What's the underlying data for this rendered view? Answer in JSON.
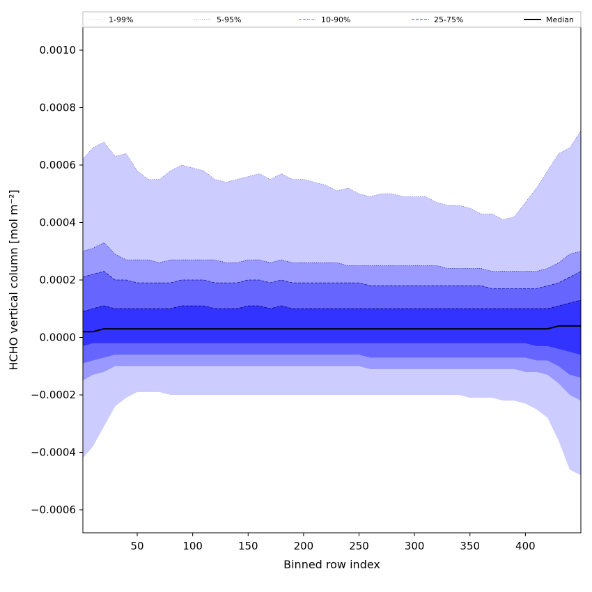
{
  "chart_data": {
    "type": "area",
    "title": "",
    "xlabel": "Binned row index",
    "ylabel": "HCHO vertical column [mol m⁻²]",
    "xlim": [
      1,
      450
    ],
    "ylim": [
      -0.00068,
      0.00108
    ],
    "x_ticks": [
      50,
      100,
      150,
      200,
      250,
      300,
      350,
      400
    ],
    "x_tick_labels": [
      "50",
      "100",
      "150",
      "200",
      "250",
      "300",
      "350",
      "400"
    ],
    "y_ticks": [
      -0.0006,
      -0.0004,
      -0.0002,
      0.0,
      0.0002,
      0.0004,
      0.0006,
      0.0008,
      0.001
    ],
    "y_tick_labels": [
      "−0.0006",
      "−0.0004",
      "−0.0002",
      "0.0000",
      "0.0002",
      "0.0004",
      "0.0006",
      "0.0008",
      "0.0010"
    ],
    "grid": false,
    "legend_position": "top, full width, single row",
    "x": [
      1,
      10,
      20,
      30,
      40,
      50,
      60,
      70,
      80,
      90,
      100,
      110,
      120,
      130,
      140,
      150,
      160,
      170,
      180,
      190,
      200,
      210,
      220,
      230,
      240,
      250,
      260,
      270,
      280,
      290,
      300,
      310,
      320,
      330,
      340,
      350,
      360,
      370,
      380,
      390,
      400,
      410,
      420,
      430,
      440,
      450
    ],
    "series": [
      {
        "name": "1-99%",
        "color": "#ccccff",
        "linestyle": "dotted",
        "upper": [
          0.00062,
          0.00066,
          0.00068,
          0.00063,
          0.00064,
          0.00058,
          0.00055,
          0.00055,
          0.00058,
          0.0006,
          0.00059,
          0.00058,
          0.00055,
          0.00054,
          0.00055,
          0.00056,
          0.00057,
          0.00055,
          0.00057,
          0.00055,
          0.00055,
          0.00054,
          0.00053,
          0.00051,
          0.00052,
          0.0005,
          0.00049,
          0.0005,
          0.0005,
          0.00049,
          0.00049,
          0.00049,
          0.00047,
          0.00046,
          0.00046,
          0.00045,
          0.00043,
          0.00043,
          0.00041,
          0.00042,
          0.00047,
          0.00052,
          0.00058,
          0.00064,
          0.00066,
          0.00072
        ],
        "lower": [
          -0.00042,
          -0.00038,
          -0.00031,
          -0.00024,
          -0.00021,
          -0.00019,
          -0.00019,
          -0.00019,
          -0.0002,
          -0.0002,
          -0.0002,
          -0.0002,
          -0.0002,
          -0.0002,
          -0.0002,
          -0.0002,
          -0.0002,
          -0.0002,
          -0.0002,
          -0.0002,
          -0.0002,
          -0.0002,
          -0.0002,
          -0.0002,
          -0.0002,
          -0.0002,
          -0.0002,
          -0.0002,
          -0.0002,
          -0.0002,
          -0.0002,
          -0.0002,
          -0.0002,
          -0.0002,
          -0.0002,
          -0.00021,
          -0.00021,
          -0.00021,
          -0.00022,
          -0.00022,
          -0.00023,
          -0.00025,
          -0.00028,
          -0.00036,
          -0.00046,
          -0.00048
        ]
      },
      {
        "name": "5-95%",
        "color": "#9999ff",
        "linestyle": "dotted",
        "upper": [
          0.0003,
          0.00031,
          0.00033,
          0.00029,
          0.00027,
          0.00027,
          0.00027,
          0.00026,
          0.00027,
          0.00027,
          0.00027,
          0.00027,
          0.00027,
          0.00026,
          0.00026,
          0.00027,
          0.00027,
          0.00026,
          0.00027,
          0.00026,
          0.00026,
          0.00026,
          0.00026,
          0.00026,
          0.00025,
          0.00025,
          0.00025,
          0.00025,
          0.00025,
          0.00025,
          0.00025,
          0.00025,
          0.00025,
          0.00024,
          0.00024,
          0.00024,
          0.00024,
          0.00023,
          0.00023,
          0.00023,
          0.00023,
          0.00023,
          0.00024,
          0.00026,
          0.00029,
          0.0003
        ],
        "lower": [
          -0.00015,
          -0.00013,
          -0.00012,
          -0.0001,
          -0.0001,
          -0.0001,
          -0.0001,
          -0.0001,
          -0.0001,
          -0.0001,
          -0.0001,
          -0.0001,
          -0.0001,
          -0.0001,
          -0.0001,
          -0.0001,
          -0.0001,
          -0.0001,
          -0.0001,
          -0.0001,
          -0.0001,
          -0.0001,
          -0.0001,
          -0.0001,
          -0.0001,
          -0.0001,
          -0.00011,
          -0.00011,
          -0.00011,
          -0.00011,
          -0.00011,
          -0.00011,
          -0.00011,
          -0.00011,
          -0.00011,
          -0.00011,
          -0.00011,
          -0.00011,
          -0.00011,
          -0.00011,
          -0.00012,
          -0.00012,
          -0.00013,
          -0.00016,
          -0.0002,
          -0.00022
        ]
      },
      {
        "name": "10-90%",
        "color": "#6666ff",
        "linestyle": "dashed",
        "upper": [
          0.00021,
          0.00022,
          0.00023,
          0.0002,
          0.0002,
          0.00019,
          0.00019,
          0.00019,
          0.00019,
          0.0002,
          0.0002,
          0.0002,
          0.00019,
          0.00019,
          0.00019,
          0.0002,
          0.0002,
          0.00019,
          0.0002,
          0.00019,
          0.00019,
          0.00019,
          0.00019,
          0.00019,
          0.00019,
          0.00019,
          0.00018,
          0.00018,
          0.00018,
          0.00018,
          0.00018,
          0.00018,
          0.00018,
          0.00018,
          0.00018,
          0.00018,
          0.00018,
          0.00017,
          0.00017,
          0.00017,
          0.00017,
          0.00017,
          0.00018,
          0.00019,
          0.00021,
          0.00023
        ],
        "lower": [
          -9e-05,
          -8e-05,
          -7e-05,
          -6e-05,
          -6e-05,
          -6e-05,
          -6e-05,
          -6e-05,
          -6e-05,
          -6e-05,
          -6e-05,
          -6e-05,
          -6e-05,
          -6e-05,
          -6e-05,
          -6e-05,
          -6e-05,
          -6e-05,
          -6e-05,
          -6e-05,
          -6e-05,
          -6e-05,
          -6e-05,
          -6e-05,
          -6e-05,
          -6e-05,
          -7e-05,
          -7e-05,
          -7e-05,
          -7e-05,
          -7e-05,
          -7e-05,
          -7e-05,
          -7e-05,
          -7e-05,
          -7e-05,
          -7e-05,
          -7e-05,
          -7e-05,
          -7e-05,
          -7e-05,
          -8e-05,
          -8e-05,
          -0.0001,
          -0.00013,
          -0.00014
        ]
      },
      {
        "name": "25-75%",
        "color": "#3333ff",
        "linestyle": "dashed",
        "upper": [
          9e-05,
          0.0001,
          0.00011,
          0.0001,
          0.0001,
          0.0001,
          0.0001,
          0.0001,
          0.0001,
          0.00011,
          0.00011,
          0.00011,
          0.0001,
          0.0001,
          0.0001,
          0.00011,
          0.00011,
          0.0001,
          0.00011,
          0.0001,
          0.0001,
          0.0001,
          0.0001,
          0.0001,
          0.0001,
          0.0001,
          0.0001,
          0.0001,
          0.0001,
          0.0001,
          0.0001,
          0.0001,
          0.0001,
          0.0001,
          0.0001,
          0.0001,
          0.0001,
          0.0001,
          0.0001,
          0.0001,
          0.0001,
          0.0001,
          0.0001,
          0.00011,
          0.00012,
          0.00013
        ],
        "lower": [
          -3e-05,
          -2e-05,
          -2e-05,
          -2e-05,
          -2e-05,
          -2e-05,
          -2e-05,
          -2e-05,
          -2e-05,
          -2e-05,
          -2e-05,
          -2e-05,
          -2e-05,
          -2e-05,
          -2e-05,
          -2e-05,
          -2e-05,
          -2e-05,
          -2e-05,
          -2e-05,
          -2e-05,
          -2e-05,
          -2e-05,
          -2e-05,
          -2e-05,
          -2e-05,
          -2e-05,
          -2e-05,
          -2e-05,
          -2e-05,
          -2e-05,
          -2e-05,
          -2e-05,
          -2e-05,
          -2e-05,
          -2e-05,
          -2e-05,
          -2e-05,
          -2e-05,
          -2e-05,
          -2e-05,
          -3e-05,
          -3e-05,
          -4e-05,
          -5e-05,
          -6e-05
        ]
      },
      {
        "name": "Median",
        "color": "#000000",
        "linestyle": "solid",
        "values": [
          2e-05,
          2e-05,
          3e-05,
          3e-05,
          3e-05,
          3e-05,
          3e-05,
          3e-05,
          3e-05,
          3e-05,
          3e-05,
          3e-05,
          3e-05,
          3e-05,
          3e-05,
          3e-05,
          3e-05,
          3e-05,
          3e-05,
          3e-05,
          3e-05,
          3e-05,
          3e-05,
          3e-05,
          3e-05,
          3e-05,
          3e-05,
          3e-05,
          3e-05,
          3e-05,
          3e-05,
          3e-05,
          3e-05,
          3e-05,
          3e-05,
          3e-05,
          3e-05,
          3e-05,
          3e-05,
          3e-05,
          3e-05,
          3e-05,
          3e-05,
          4e-05,
          4e-05,
          4e-05
        ]
      }
    ],
    "legend": [
      {
        "label": "1-99%",
        "color": "#ccccff",
        "style": "dotted"
      },
      {
        "label": "5-95%",
        "color": "#9999ff",
        "style": "dotted"
      },
      {
        "label": "10-90%",
        "color": "#6666ff",
        "style": "dashed"
      },
      {
        "label": "25-75%",
        "color": "#3333ff",
        "style": "dashed"
      },
      {
        "label": "Median",
        "color": "#000000",
        "style": "solid"
      }
    ]
  }
}
